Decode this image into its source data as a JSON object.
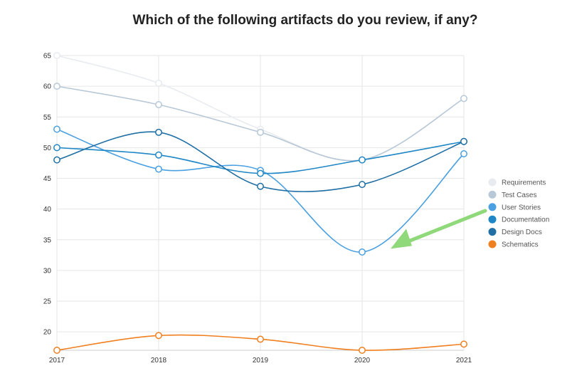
{
  "chart_data": {
    "type": "line",
    "title": "Which of the following artifacts do you review, if any?",
    "x": [
      "2017",
      "2018",
      "2019",
      "2020",
      "2021"
    ],
    "yticks": [
      20,
      25,
      30,
      35,
      40,
      45,
      50,
      55,
      60,
      65
    ],
    "ylim": [
      17,
      65
    ],
    "grid": true,
    "legend_position": "right",
    "series": [
      {
        "name": "Requirements",
        "color": "#e8ebef",
        "values": [
          65,
          60.5,
          53,
          48,
          58
        ]
      },
      {
        "name": "Test Cases",
        "color": "#b8c8d6",
        "values": [
          60,
          57,
          52.5,
          48,
          58
        ]
      },
      {
        "name": "User Stories",
        "color": "#4aa0e0",
        "values": [
          53,
          46.5,
          46.3,
          33,
          49
        ]
      },
      {
        "name": "Documentation",
        "color": "#1f87c6",
        "values": [
          50,
          48.8,
          45.8,
          48,
          51
        ]
      },
      {
        "name": "Design Docs",
        "color": "#1f6fa5",
        "values": [
          48,
          52.5,
          43.7,
          44,
          51
        ]
      },
      {
        "name": "Schematics",
        "color": "#f07f1f",
        "values": [
          17,
          19.4,
          18.8,
          17,
          18
        ]
      }
    ],
    "annotations": [
      {
        "type": "arrow",
        "color": "#8fd97a",
        "points_to": {
          "x": "2020",
          "y": 34
        }
      }
    ]
  }
}
